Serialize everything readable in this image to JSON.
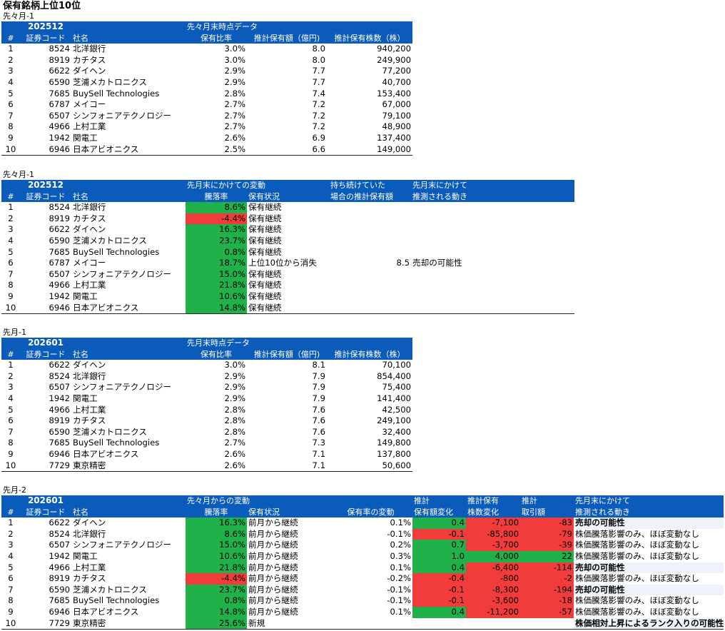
{
  "page": {
    "title": "保有銘柄上位10位"
  },
  "s1": {
    "caption": "先々月-1",
    "year": "202512",
    "group": "先々月末時点データ",
    "h": {
      "num": "#",
      "code": "証券コード",
      "name": "社名",
      "ratio": "保有比率",
      "amount": "推計保有額（億円)",
      "shares": "推計保有株数（株）"
    },
    "rows": [
      {
        "n": "1",
        "code": "8524",
        "name": "北洋銀行",
        "ratio": "3.0%",
        "amount": "8.0",
        "shares": "940,200"
      },
      {
        "n": "2",
        "code": "8919",
        "name": "カチタス",
        "ratio": "3.0%",
        "amount": "8.0",
        "shares": "249,900"
      },
      {
        "n": "3",
        "code": "6622",
        "name": "ダイヘン",
        "ratio": "2.9%",
        "amount": "7.7",
        "shares": "77,200"
      },
      {
        "n": "4",
        "code": "6590",
        "name": "芝浦メカトロニクス",
        "ratio": "2.9%",
        "amount": "7.7",
        "shares": "40,700"
      },
      {
        "n": "5",
        "code": "7685",
        "name": "BuySell Technologies",
        "ratio": "2.8%",
        "amount": "7.4",
        "shares": "153,400"
      },
      {
        "n": "6",
        "code": "6787",
        "name": "メイコー",
        "ratio": "2.7%",
        "amount": "7.2",
        "shares": "67,000"
      },
      {
        "n": "7",
        "code": "6507",
        "name": "シンフォニアテクノロジー",
        "ratio": "2.7%",
        "amount": "7.2",
        "shares": "79,100"
      },
      {
        "n": "8",
        "code": "4966",
        "name": "上村工業",
        "ratio": "2.7%",
        "amount": "7.2",
        "shares": "48,900"
      },
      {
        "n": "9",
        "code": "1942",
        "name": "関電工",
        "ratio": "2.6%",
        "amount": "6.9",
        "shares": "137,400"
      },
      {
        "n": "10",
        "code": "6946",
        "name": "日本アビオニクス",
        "ratio": "2.5%",
        "amount": "6.6",
        "shares": "149,000"
      }
    ]
  },
  "s2": {
    "caption": "先々月-1",
    "year": "202512",
    "group1": "先月末にかけての変動",
    "group2": "持ち続けていた",
    "group3": "先月末にかけて",
    "h": {
      "num": "#",
      "code": "証券コード",
      "name": "社名",
      "rate": "騰落率",
      "status": "保有状況",
      "est": "場合の推計保有額",
      "move": "推測される動き"
    },
    "rows": [
      {
        "n": "1",
        "code": "8524",
        "name": "北洋銀行",
        "rate": "8.6%",
        "status": "保有継続",
        "est": "",
        "move": "",
        "pos": true
      },
      {
        "n": "2",
        "code": "8919",
        "name": "カチタス",
        "rate": "-4.4%",
        "status": "保有継続",
        "est": "",
        "move": "",
        "pos": false
      },
      {
        "n": "3",
        "code": "6622",
        "name": "ダイヘン",
        "rate": "16.3%",
        "status": "保有継続",
        "est": "",
        "move": "",
        "pos": true
      },
      {
        "n": "4",
        "code": "6590",
        "name": "芝浦メカトロニクス",
        "rate": "23.7%",
        "status": "保有継続",
        "est": "",
        "move": "",
        "pos": true
      },
      {
        "n": "5",
        "code": "7685",
        "name": "BuySell Technologies",
        "rate": "0.8%",
        "status": "保有継続",
        "est": "",
        "move": "",
        "pos": true
      },
      {
        "n": "6",
        "code": "6787",
        "name": "メイコー",
        "rate": "18.7%",
        "status": "上位10位から消失",
        "est": "8.5",
        "move": "売却の可能性",
        "pos": true
      },
      {
        "n": "7",
        "code": "6507",
        "name": "シンフォニアテクノロジー",
        "rate": "15.0%",
        "status": "保有継続",
        "est": "",
        "move": "",
        "pos": true
      },
      {
        "n": "8",
        "code": "4966",
        "name": "上村工業",
        "rate": "21.8%",
        "status": "保有継続",
        "est": "",
        "move": "",
        "pos": true
      },
      {
        "n": "9",
        "code": "1942",
        "name": "関電工",
        "rate": "10.6%",
        "status": "保有継続",
        "est": "",
        "move": "",
        "pos": true
      },
      {
        "n": "10",
        "code": "6946",
        "name": "日本アビオニクス",
        "rate": "14.8%",
        "status": "保有継続",
        "est": "",
        "move": "",
        "pos": true
      }
    ]
  },
  "s3": {
    "caption": "先月-1",
    "year": "202601",
    "group": "先月末時点データ",
    "h": {
      "num": "#",
      "code": "証券コード",
      "name": "社名",
      "ratio": "保有比率",
      "amount": "推計保有額（億円)",
      "shares": "推計保有株数（株）"
    },
    "rows": [
      {
        "n": "1",
        "code": "6622",
        "name": "ダイヘン",
        "ratio": "3.0%",
        "amount": "8.1",
        "shares": "70,100"
      },
      {
        "n": "2",
        "code": "8524",
        "name": "北洋銀行",
        "ratio": "2.9%",
        "amount": "7.9",
        "shares": "854,400"
      },
      {
        "n": "3",
        "code": "6507",
        "name": "シンフォニアテクノロジー",
        "ratio": "2.9%",
        "amount": "7.9",
        "shares": "75,400"
      },
      {
        "n": "4",
        "code": "1942",
        "name": "関電工",
        "ratio": "2.9%",
        "amount": "7.9",
        "shares": "141,400"
      },
      {
        "n": "5",
        "code": "4966",
        "name": "上村工業",
        "ratio": "2.8%",
        "amount": "7.6",
        "shares": "42,500"
      },
      {
        "n": "6",
        "code": "8919",
        "name": "カチタス",
        "ratio": "2.8%",
        "amount": "7.6",
        "shares": "249,100"
      },
      {
        "n": "7",
        "code": "6590",
        "name": "芝浦メカトロニクス",
        "ratio": "2.8%",
        "amount": "7.6",
        "shares": "32,400"
      },
      {
        "n": "8",
        "code": "7685",
        "name": "BuySell Technologies",
        "ratio": "2.7%",
        "amount": "7.3",
        "shares": "149,800"
      },
      {
        "n": "9",
        "code": "6946",
        "name": "日本アビオニクス",
        "ratio": "2.6%",
        "amount": "7.1",
        "shares": "137,800"
      },
      {
        "n": "10",
        "code": "7729",
        "name": "東京精密",
        "ratio": "2.6%",
        "amount": "7.1",
        "shares": "50,600"
      }
    ]
  },
  "s4": {
    "caption": "先月-2",
    "year": "202601",
    "group1": "先々月からの変動",
    "group2": "推計",
    "group3": "推計保有",
    "group4": "推計",
    "group5": "先月末にかけて",
    "h": {
      "num": "#",
      "code": "証券コード",
      "name": "社名",
      "rate": "騰落率",
      "status": "保有状況",
      "ratio_chg": "保有率の変動",
      "amt_chg": "保有額変化",
      "share_chg": "株数変化",
      "trade": "取引額",
      "move": "推測される動き"
    },
    "rows": [
      {
        "n": "1",
        "code": "6622",
        "name": "ダイヘン",
        "rate": "16.3%",
        "status": "前月から継続",
        "ratio_chg": "0.1%",
        "amt_chg": "0.4",
        "share_chg": "-7,100",
        "trade": "-83",
        "move": "売却の可能性",
        "rate_pos": true,
        "amt_pos": true,
        "share_pos": false,
        "trade_pos": false,
        "move_strong": true
      },
      {
        "n": "2",
        "code": "8524",
        "name": "北洋銀行",
        "rate": "8.6%",
        "status": "前月から継続",
        "ratio_chg": "-0.1%",
        "amt_chg": "-0.1",
        "share_chg": "-85,800",
        "trade": "-79",
        "move": "株価騰落影響のみ、ほぼ変動なし",
        "rate_pos": true,
        "amt_pos": false,
        "share_pos": false,
        "trade_pos": false,
        "move_strong": false
      },
      {
        "n": "3",
        "code": "6507",
        "name": "シンフォニアテクノロジー",
        "rate": "15.0%",
        "status": "前月から継続",
        "ratio_chg": "0.2%",
        "amt_chg": "0.7",
        "share_chg": "-3,700",
        "trade": "-39",
        "move": "株価騰落影響のみ、ほぼ変動なし",
        "rate_pos": true,
        "amt_pos": true,
        "share_pos": false,
        "trade_pos": false,
        "move_strong": false
      },
      {
        "n": "4",
        "code": "1942",
        "name": "関電工",
        "rate": "10.6%",
        "status": "前月から継続",
        "ratio_chg": "0.3%",
        "amt_chg": "1.0",
        "share_chg": "4,000",
        "trade": "22",
        "move": "株価騰落影響のみ、ほぼ変動なし",
        "rate_pos": true,
        "amt_pos": true,
        "share_pos": true,
        "trade_pos": true,
        "move_strong": false
      },
      {
        "n": "5",
        "code": "4966",
        "name": "上村工業",
        "rate": "21.8%",
        "status": "前月から継続",
        "ratio_chg": "0.1%",
        "amt_chg": "0.4",
        "share_chg": "-6,400",
        "trade": "-114",
        "move": "売却の可能性",
        "rate_pos": true,
        "amt_pos": true,
        "share_pos": false,
        "trade_pos": false,
        "move_strong": true
      },
      {
        "n": "6",
        "code": "8919",
        "name": "カチタス",
        "rate": "-4.4%",
        "status": "前月から継続",
        "ratio_chg": "-0.2%",
        "amt_chg": "-0.4",
        "share_chg": "-800",
        "trade": "-2",
        "move": "株価騰落影響のみ、ほぼ変動なし",
        "rate_pos": false,
        "amt_pos": false,
        "share_pos": false,
        "trade_pos": false,
        "move_strong": false
      },
      {
        "n": "7",
        "code": "6590",
        "name": "芝浦メカトロニクス",
        "rate": "23.7%",
        "status": "前月から継続",
        "ratio_chg": "-0.1%",
        "amt_chg": "-0.1",
        "share_chg": "-8,300",
        "trade": "-194",
        "move": "売却の可能性",
        "rate_pos": true,
        "amt_pos": false,
        "share_pos": false,
        "trade_pos": false,
        "move_strong": true
      },
      {
        "n": "8",
        "code": "7685",
        "name": "BuySell Technologies",
        "rate": "0.8%",
        "status": "前月から継続",
        "ratio_chg": "-0.1%",
        "amt_chg": "-0.1",
        "share_chg": "-3,600",
        "trade": "-18",
        "move": "株価騰落影響のみ、ほぼ変動なし",
        "rate_pos": true,
        "amt_pos": false,
        "share_pos": false,
        "trade_pos": false,
        "move_strong": false
      },
      {
        "n": "9",
        "code": "6946",
        "name": "日本アビオニクス",
        "rate": "14.8%",
        "status": "前月から継続",
        "ratio_chg": "0.1%",
        "amt_chg": "0.4",
        "share_chg": "-11,200",
        "trade": "-57",
        "move": "株価騰落影響のみ、ほぼ変動なし",
        "rate_pos": true,
        "amt_pos": true,
        "share_pos": false,
        "trade_pos": false,
        "move_strong": false
      },
      {
        "n": "10",
        "code": "7729",
        "name": "東京精密",
        "rate": "25.6%",
        "status": "新規",
        "ratio_chg": "",
        "amt_chg": "",
        "share_chg": "",
        "trade": "",
        "move": "株価相対上昇によるランク入りの可能性",
        "rate_pos": true,
        "amt_pos": null,
        "share_pos": null,
        "trade_pos": null,
        "move_strong": true
      }
    ]
  },
  "colors": {
    "header_blue": "#0b5bbb",
    "positive_green": "#21b14b",
    "negative_red": "#f23c3c",
    "highlight": "#eef3fb"
  }
}
